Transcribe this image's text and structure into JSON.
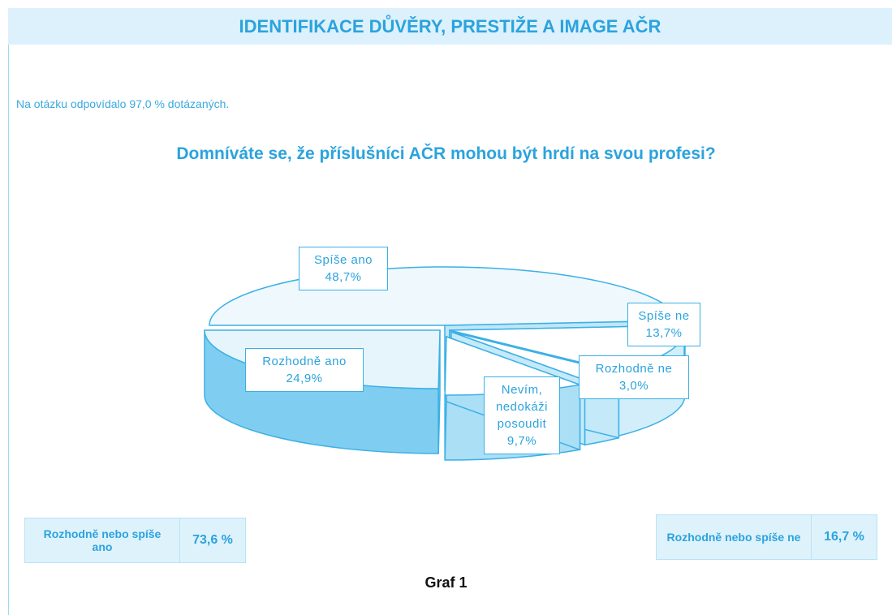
{
  "header": {
    "title": "IDENTIFIKACE DŮVĚRY, PRESTIŽE A IMAGE AČR"
  },
  "note": "Na otázku odpovídalo 97,0 % dotázaných.",
  "chart_data": {
    "type": "pie",
    "title": "Domníváte se, že příslušníci AČR mohou být hrdí na svou profesi?",
    "categories": [
      "Spíše ano",
      "Spíše ne",
      "Rozhodně ne",
      "Nevím, nedokáži posoudit",
      "Rozhodně ano"
    ],
    "values": [
      48.7,
      13.7,
      3.0,
      9.7,
      24.9
    ],
    "value_labels": [
      "48,7%",
      "13,7%",
      "3,0%",
      "9,7%",
      "24,9%"
    ],
    "colors": [
      "#eef8fd",
      "#ffffff",
      "#ffffff",
      "#ffffff",
      "#e6f5fc"
    ],
    "side_colors": [
      "#bfe6f8",
      "#d2eefa",
      "#c4e9f9",
      "#aadff6",
      "#7fcdf0"
    ]
  },
  "summary": [
    {
      "label": "Rozhodně nebo spíše ano",
      "value": "73,6 %"
    },
    {
      "label": "Rozhodně nebo spíše ne",
      "value": "16,7 %"
    }
  ],
  "caption": "Graf 1"
}
